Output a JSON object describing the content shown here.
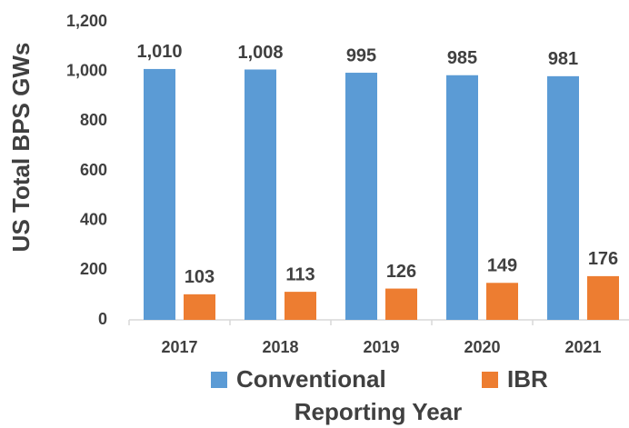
{
  "chart_data": {
    "type": "bar",
    "x_label": "Reporting Year",
    "y_label": "US Total BPS GWs",
    "categories": [
      "2017",
      "2018",
      "2019",
      "2020",
      "2021"
    ],
    "series": [
      {
        "name": "Conventional",
        "color": "#5b9bd5",
        "values": [
          1010,
          1008,
          995,
          985,
          981
        ],
        "value_labels": [
          "1,010",
          "1,008",
          "995",
          "985",
          "981"
        ]
      },
      {
        "name": "IBR",
        "color": "#ed7d31",
        "values": [
          103,
          113,
          126,
          149,
          176
        ]
      }
    ],
    "ylim": [
      0,
      1200
    ],
    "yticks": [
      0,
      200,
      400,
      600,
      800,
      {
        "value": 1000,
        "label": "1,000"
      },
      {
        "value": 1200,
        "label": "1,200"
      }
    ],
    "grid": false,
    "legend": "bottom"
  }
}
